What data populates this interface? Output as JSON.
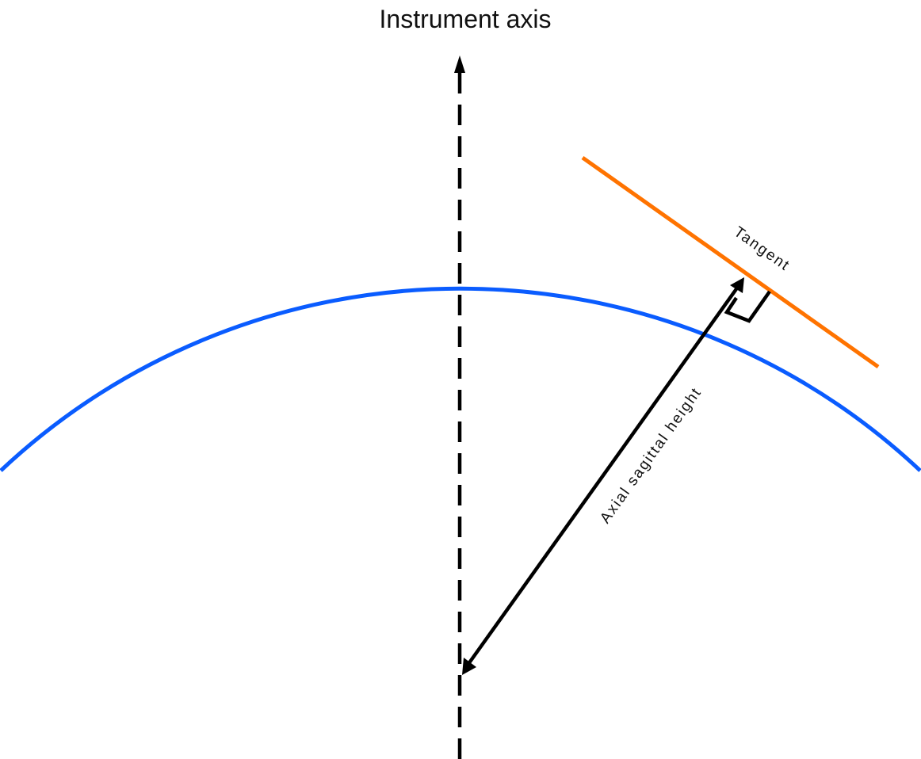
{
  "labels": {
    "axis_title": "Instrument axis",
    "tangent": "Tangent",
    "axial_sagittal_height": "Axial sagittal height"
  },
  "colors": {
    "background": "#ffffff",
    "surface_curve": "#0a5cff",
    "tangent_line": "#ff7300",
    "axis_line": "#000000",
    "arrow": "#000000",
    "text": "#111111"
  },
  "icons": {
    "axis_arrowhead": "arrow-up",
    "height_arrowheads": "double-headed-arrow",
    "right_angle_marker": "right-angle-square"
  }
}
